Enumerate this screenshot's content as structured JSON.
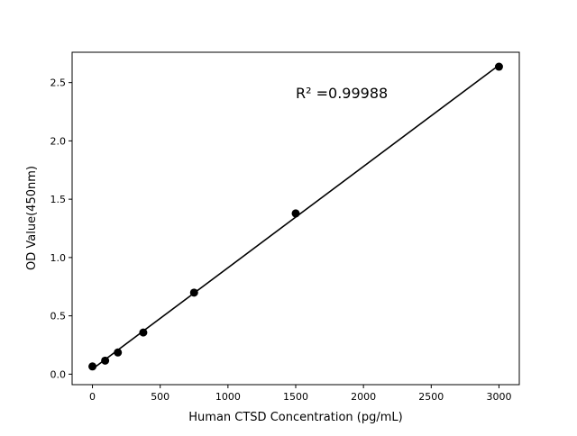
{
  "chart_data": {
    "type": "scatter",
    "title": "",
    "xlabel": "Human CTSD Concentration (pg/mL)",
    "ylabel": "OD Value(450nm)",
    "annotation": "R² =0.99988",
    "x": [
      0,
      93.75,
      187.5,
      375,
      750,
      1500,
      3000
    ],
    "y": [
      0.066,
      0.116,
      0.186,
      0.357,
      0.699,
      1.378,
      2.636
    ],
    "fit_line": "linear",
    "xlim": [
      -150,
      3150
    ],
    "ylim": [
      -0.09,
      2.76
    ],
    "xticks": [
      "0",
      "500",
      "1000",
      "1500",
      "2000",
      "2500",
      "3000"
    ],
    "yticks": [
      "0.0",
      "0.5",
      "1.0",
      "1.5",
      "2.0",
      "2.5"
    ],
    "grid": false,
    "marker_color": "#000000",
    "line_color": "#000000"
  }
}
